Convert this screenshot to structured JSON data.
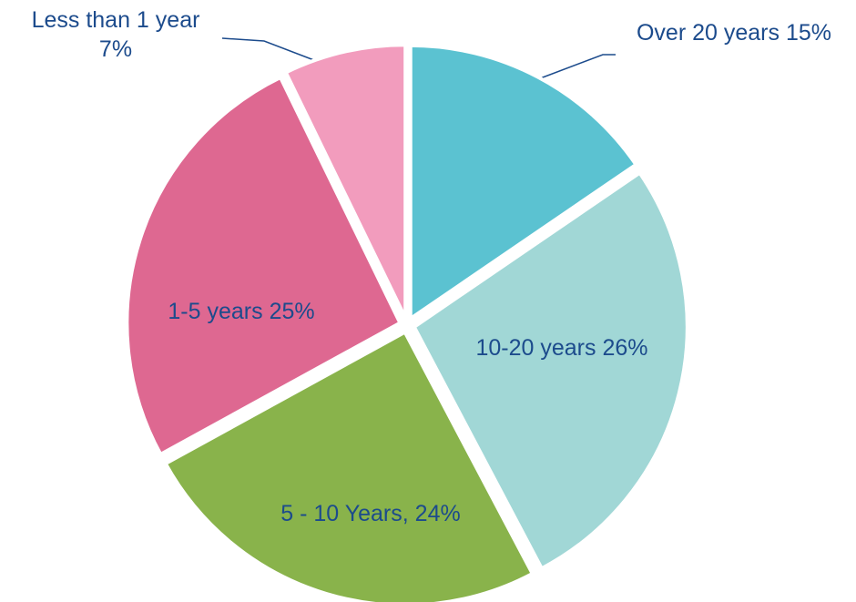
{
  "chart_data": {
    "type": "pie",
    "categories": [
      "Over 20 years",
      "10-20 years",
      "5 - 10 Years,",
      "1-5 years",
      "Less than 1 year"
    ],
    "values": [
      15,
      26,
      24,
      25,
      7
    ],
    "value_labels": [
      "15%",
      "26%",
      "24%",
      "25%",
      "7%"
    ],
    "colors": [
      "#5bc2d1",
      "#a1d7d6",
      "#89b34b",
      "#de6891",
      "#f29cbd"
    ]
  }
}
